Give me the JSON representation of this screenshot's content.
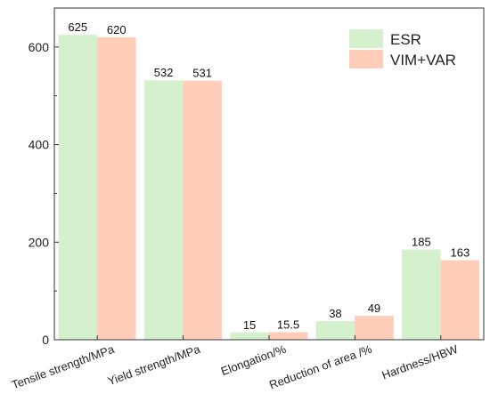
{
  "chart_data": {
    "type": "bar",
    "title": "",
    "xlabel": "",
    "ylabel": "",
    "categories": [
      "Tensile strength/MPa",
      "Yield strength/MPa",
      "Elongation/%",
      "Reduction of area /%",
      "Hardness/HBW"
    ],
    "series": [
      {
        "name": "ESR",
        "values": [
          625,
          532,
          15,
          38,
          185
        ],
        "labels": [
          "625",
          "532",
          "15",
          "38",
          "185"
        ],
        "color": "#d4f0cc"
      },
      {
        "name": "VIM+VAR",
        "values": [
          620,
          531,
          15.5,
          49,
          163
        ],
        "labels": [
          "620",
          "531",
          "15.5",
          "49",
          "163"
        ],
        "color": "#ffcdb8"
      }
    ],
    "ylim": [
      0,
      680
    ],
    "yticks": [
      0,
      200,
      400,
      600
    ],
    "grid": false,
    "legend": "top-right"
  }
}
